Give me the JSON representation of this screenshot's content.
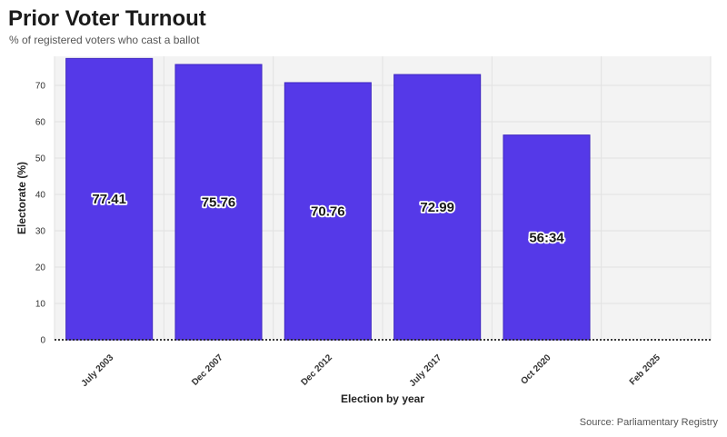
{
  "header": {
    "title": "Prior Voter Turnout",
    "subtitle": "% of registered voters who cast a ballot"
  },
  "footer": {
    "source": "Source: Parliamentary Registry"
  },
  "colors": {
    "bar": "#5539e8",
    "bar_stroke": "#3f28c0",
    "plot_bg": "#f3f3f3",
    "grid": "#e2e2e2"
  },
  "chart_data": {
    "type": "bar",
    "title": "Prior Voter Turnout",
    "subtitle": "% of registered voters who cast a ballot",
    "xlabel": "Election by year",
    "ylabel": "Electorate (%)",
    "categories": [
      "July 2003",
      "Dec 2007",
      "Dec 2012",
      "July 2017",
      "Oct 2020",
      "Feb 2025"
    ],
    "values": [
      77.41,
      75.76,
      70.76,
      72.99,
      56.34,
      null
    ],
    "data_labels": [
      "77.41",
      "75.76",
      "70.76",
      "72.99",
      "56:34",
      ""
    ],
    "ylim": [
      0,
      78
    ],
    "yticks": [
      0,
      10,
      20,
      30,
      40,
      50,
      60,
      70
    ],
    "grid": true,
    "legend": "none"
  }
}
